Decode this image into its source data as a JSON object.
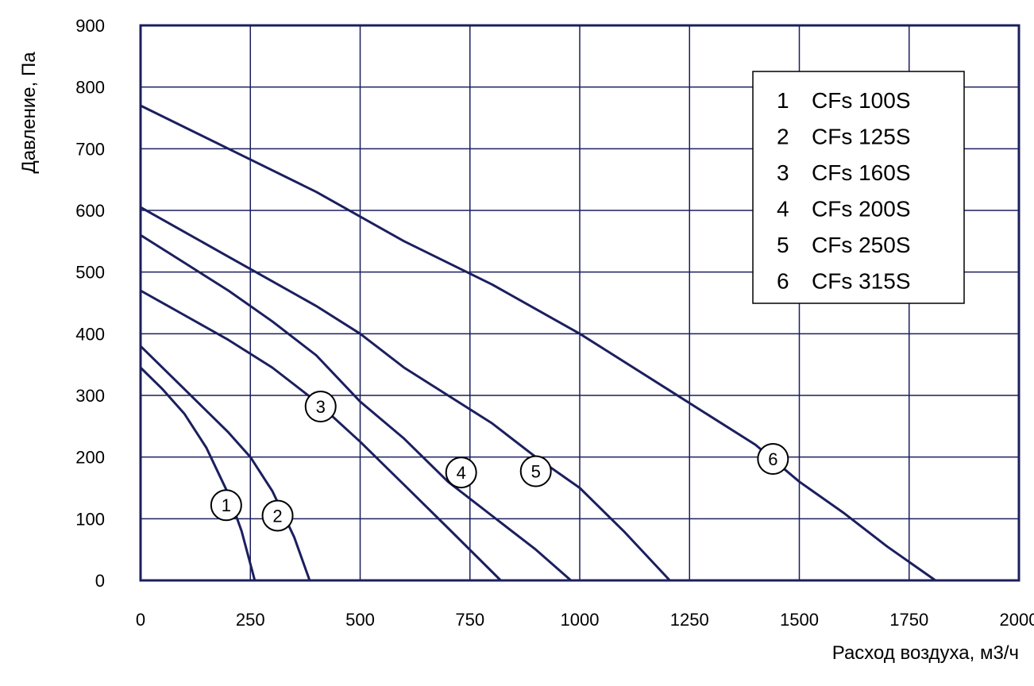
{
  "chart_data": {
    "type": "line",
    "title": "",
    "xlabel": "Расход воздуха, м3/ч",
    "ylabel": "Давление, Па",
    "xlim": [
      0,
      2000
    ],
    "ylim": [
      0,
      900
    ],
    "x_ticks": [
      "0",
      "250",
      "500",
      "750",
      "1000",
      "1250",
      "1500",
      "1750",
      "2000"
    ],
    "y_ticks": [
      "0",
      "100",
      "200",
      "300",
      "400",
      "500",
      "600",
      "700",
      "800",
      "900"
    ],
    "grid": true,
    "legend_position": "top-right",
    "line_color": "#1b1f5e",
    "legend": [
      {
        "num": "1",
        "name": "CFs 100S"
      },
      {
        "num": "2",
        "name": "CFs 125S"
      },
      {
        "num": "3",
        "name": "CFs 160S"
      },
      {
        "num": "4",
        "name": "CFs 200S"
      },
      {
        "num": "5",
        "name": "CFs 250S"
      },
      {
        "num": "6",
        "name": "CFs 315S"
      }
    ],
    "series": [
      {
        "name": "CFs 100S",
        "label": "1",
        "label_at": [
          195,
          122
        ],
        "points": [
          [
            0,
            345
          ],
          [
            50,
            310
          ],
          [
            100,
            270
          ],
          [
            150,
            215
          ],
          [
            200,
            140
          ],
          [
            230,
            80
          ],
          [
            260,
            0
          ]
        ]
      },
      {
        "name": "CFs 125S",
        "label": "2",
        "label_at": [
          312,
          105
        ],
        "points": [
          [
            0,
            380
          ],
          [
            100,
            310
          ],
          [
            200,
            240
          ],
          [
            250,
            200
          ],
          [
            300,
            145
          ],
          [
            350,
            70
          ],
          [
            385,
            0
          ]
        ]
      },
      {
        "name": "CFs 160S",
        "label": "3",
        "label_at": [
          410,
          282
        ],
        "points": [
          [
            0,
            470
          ],
          [
            100,
            430
          ],
          [
            200,
            390
          ],
          [
            300,
            345
          ],
          [
            400,
            290
          ],
          [
            500,
            225
          ],
          [
            600,
            155
          ],
          [
            700,
            85
          ],
          [
            820,
            0
          ]
        ]
      },
      {
        "name": "CFs 200S",
        "label": "4",
        "label_at": [
          730,
          175
        ],
        "points": [
          [
            0,
            560
          ],
          [
            100,
            515
          ],
          [
            200,
            470
          ],
          [
            300,
            420
          ],
          [
            400,
            365
          ],
          [
            500,
            290
          ],
          [
            600,
            230
          ],
          [
            700,
            160
          ],
          [
            800,
            105
          ],
          [
            900,
            50
          ],
          [
            980,
            0
          ]
        ]
      },
      {
        "name": "CFs 250S",
        "label": "5",
        "label_at": [
          900,
          177
        ],
        "points": [
          [
            0,
            605
          ],
          [
            100,
            565
          ],
          [
            200,
            525
          ],
          [
            300,
            485
          ],
          [
            400,
            445
          ],
          [
            500,
            400
          ],
          [
            600,
            345
          ],
          [
            700,
            300
          ],
          [
            800,
            255
          ],
          [
            900,
            200
          ],
          [
            1000,
            150
          ],
          [
            1100,
            80
          ],
          [
            1205,
            0
          ]
        ]
      },
      {
        "name": "CFs 315S",
        "label": "6",
        "label_at": [
          1440,
          197
        ],
        "points": [
          [
            0,
            770
          ],
          [
            200,
            700
          ],
          [
            400,
            630
          ],
          [
            600,
            550
          ],
          [
            800,
            480
          ],
          [
            1000,
            400
          ],
          [
            1200,
            310
          ],
          [
            1300,
            265
          ],
          [
            1400,
            220
          ],
          [
            1500,
            160
          ],
          [
            1600,
            110
          ],
          [
            1700,
            55
          ],
          [
            1810,
            0
          ]
        ]
      }
    ]
  }
}
